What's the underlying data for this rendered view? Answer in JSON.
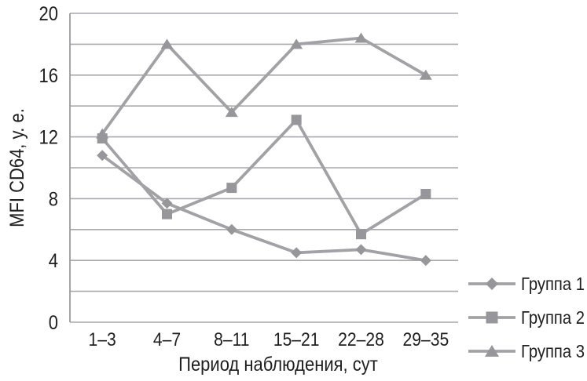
{
  "chart_data": {
    "type": "line",
    "title": "",
    "categories": [
      "1–3",
      "4–7",
      "8–11",
      "15–21",
      "22–28",
      "29–35"
    ],
    "series": [
      {
        "name": "Группа 1",
        "marker": "diamond",
        "values": [
          10.8,
          7.7,
          6.0,
          4.5,
          4.7,
          4.0
        ]
      },
      {
        "name": "Группа 2",
        "marker": "square",
        "values": [
          11.9,
          7.0,
          8.7,
          13.1,
          5.7,
          8.3
        ]
      },
      {
        "name": "Группа 3",
        "marker": "triangle",
        "values": [
          12.2,
          18.0,
          13.6,
          18.0,
          18.4,
          16.0
        ]
      }
    ],
    "xlabel": "Период наблюдения, сут",
    "ylabel": "MFI CD64, у. е.",
    "ylim": [
      0,
      20
    ],
    "y_gridline_step": 2,
    "y_label_step": 4,
    "grid": "horizontal",
    "legend_position": "right-bottom",
    "legend_labels": [
      "Группа 1",
      "Группа 2",
      "Группа 3"
    ]
  },
  "colors": {
    "background": "#ffffff",
    "series_line": "#a2a2a6",
    "marker_fill": "#97979b",
    "gridline": "#a9a9ad",
    "axis_line": "#9b9b9f",
    "text": "#1f1f1f"
  }
}
